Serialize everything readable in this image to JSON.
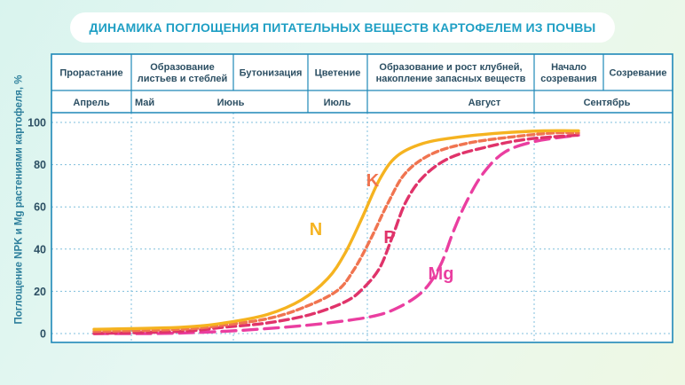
{
  "title": "ДИНАМИКА ПОГЛОЩЕНИЯ ПИТАТЕЛЬНЫХ ВЕЩЕСТВ КАРТОФЕЛЕМ ИЗ ПОЧВЫ",
  "chart_data": {
    "type": "line",
    "ylabel": "Поглощение NPK и Mg растениями картофеля, %",
    "ylim": [
      0,
      100
    ],
    "yticks": [
      0,
      20,
      40,
      60,
      80,
      100
    ],
    "grid": true,
    "phases": [
      {
        "label": "Прорастание"
      },
      {
        "label": "Образование листьев и стеблей",
        "lines": [
          "Образование",
          "листьев и стеблей"
        ]
      },
      {
        "label": "Бутонизация"
      },
      {
        "label": "Цветение"
      },
      {
        "label": "Образование и рост клубней, накопление запасных веществ",
        "lines": [
          "Образование и рост клубней,",
          "накопление запасных веществ"
        ]
      },
      {
        "label": "Начало созревания",
        "lines": [
          "Начало",
          "созревания"
        ]
      },
      {
        "label": "Созревание"
      }
    ],
    "months": [
      "Апрель",
      "Май",
      "Июнь",
      "Июль",
      "Август",
      "Сентябрь"
    ],
    "series": [
      {
        "name": "N",
        "color": "#f5b320",
        "dash": "solid",
        "points": [
          [
            0,
            2
          ],
          [
            1,
            3
          ],
          [
            1.5,
            5
          ],
          [
            2,
            9
          ],
          [
            2.4,
            16
          ],
          [
            2.7,
            26
          ],
          [
            2.9,
            38
          ],
          [
            3.1,
            55
          ],
          [
            3.3,
            73
          ],
          [
            3.5,
            84
          ],
          [
            3.8,
            90
          ],
          [
            4.2,
            93
          ],
          [
            4.7,
            95
          ],
          [
            5.2,
            96
          ],
          [
            5.6,
            96
          ]
        ]
      },
      {
        "name": "K",
        "color": "#f07450",
        "dash": "short",
        "points": [
          [
            0,
            1
          ],
          [
            1,
            2
          ],
          [
            1.5,
            4
          ],
          [
            2,
            7
          ],
          [
            2.4,
            12
          ],
          [
            2.8,
            20
          ],
          [
            3,
            30
          ],
          [
            3.2,
            45
          ],
          [
            3.4,
            62
          ],
          [
            3.6,
            76
          ],
          [
            3.9,
            85
          ],
          [
            4.3,
            90
          ],
          [
            4.8,
            93
          ],
          [
            5.3,
            95
          ],
          [
            5.6,
            95
          ]
        ]
      },
      {
        "name": "P",
        "color": "#e0336a",
        "dash": "medium",
        "points": [
          [
            0,
            0
          ],
          [
            1,
            1
          ],
          [
            1.5,
            3
          ],
          [
            2,
            5
          ],
          [
            2.5,
            9
          ],
          [
            2.9,
            15
          ],
          [
            3.1,
            21
          ],
          [
            3.3,
            31
          ],
          [
            3.45,
            46
          ],
          [
            3.6,
            62
          ],
          [
            3.8,
            74
          ],
          [
            4.1,
            83
          ],
          [
            4.5,
            88
          ],
          [
            5,
            92
          ],
          [
            5.6,
            94
          ]
        ]
      },
      {
        "name": "Mg",
        "color": "#ea3ea0",
        "dash": "long",
        "points": [
          [
            0,
            0
          ],
          [
            0.7,
            0
          ],
          [
            1.2,
            0.5
          ],
          [
            1.7,
            1.5
          ],
          [
            2.2,
            3
          ],
          [
            2.7,
            5
          ],
          [
            3.2,
            8
          ],
          [
            3.5,
            12
          ],
          [
            3.8,
            20
          ],
          [
            4,
            32
          ],
          [
            4.15,
            48
          ],
          [
            4.3,
            62
          ],
          [
            4.5,
            76
          ],
          [
            4.75,
            86
          ],
          [
            5.1,
            91
          ],
          [
            5.6,
            94
          ]
        ]
      }
    ]
  }
}
